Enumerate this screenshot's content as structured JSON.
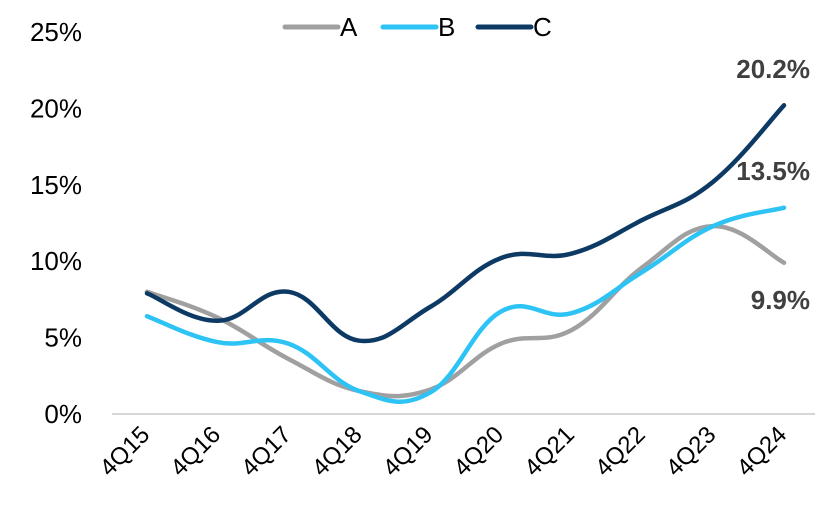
{
  "chart_data": {
    "type": "line",
    "title": "",
    "xlabel": "",
    "ylabel": "",
    "categories": [
      "4Q15",
      "4Q16",
      "4Q17",
      "4Q18",
      "4Q19",
      "4Q20",
      "4Q21",
      "4Q22",
      "4Q23",
      "4Q24"
    ],
    "ylim": [
      0,
      25
    ],
    "yticks": [
      "0%",
      "5%",
      "10%",
      "15%",
      "20%",
      "25%"
    ],
    "grid": false,
    "legend_position": "top-center",
    "smooth": true,
    "series": [
      {
        "name": "A",
        "color": "#a0a0a0",
        "values": [
          8.0,
          6.3,
          3.6,
          1.5,
          1.6,
          4.6,
          5.5,
          9.6,
          12.3,
          9.9
        ],
        "end_label": "9.9%"
      },
      {
        "name": "B",
        "color": "#2ec3f5",
        "values": [
          6.4,
          4.7,
          4.6,
          1.5,
          1.4,
          6.7,
          6.6,
          9.3,
          12.3,
          13.5
        ],
        "end_label": "13.5%"
      },
      {
        "name": "C",
        "color": "#0d3a64",
        "values": [
          7.9,
          6.1,
          8.0,
          4.8,
          7.0,
          10.2,
          10.5,
          12.7,
          15.2,
          20.2
        ],
        "end_label": "20.2%"
      }
    ]
  }
}
